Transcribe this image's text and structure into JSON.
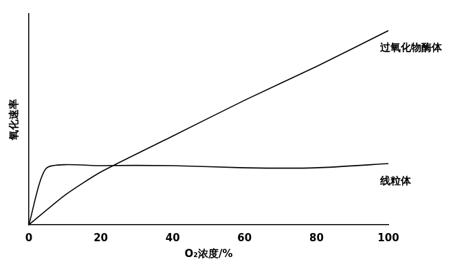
{
  "chart_data": {
    "type": "line",
    "x_label": "O₂浓度/%",
    "y_label": "氧化速率",
    "series": [
      {
        "name": "过氧化物酶体",
        "color": "#000000",
        "x": [
          0,
          10,
          20,
          40,
          60,
          80,
          100
        ],
        "values": [
          0,
          14,
          25,
          42,
          59,
          75,
          92
        ]
      },
      {
        "name": "线粒体",
        "color": "#000000",
        "x": [
          0,
          5,
          20,
          40,
          60,
          80,
          100
        ],
        "values": [
          0,
          27,
          28,
          28,
          27,
          27,
          29
        ]
      }
    ],
    "xlim": [
      0,
      100
    ],
    "xticks": [
      0,
      20,
      40,
      60,
      80,
      100
    ],
    "ylim": [
      0,
      100
    ],
    "grid": false,
    "tick_labels": "x"
  }
}
